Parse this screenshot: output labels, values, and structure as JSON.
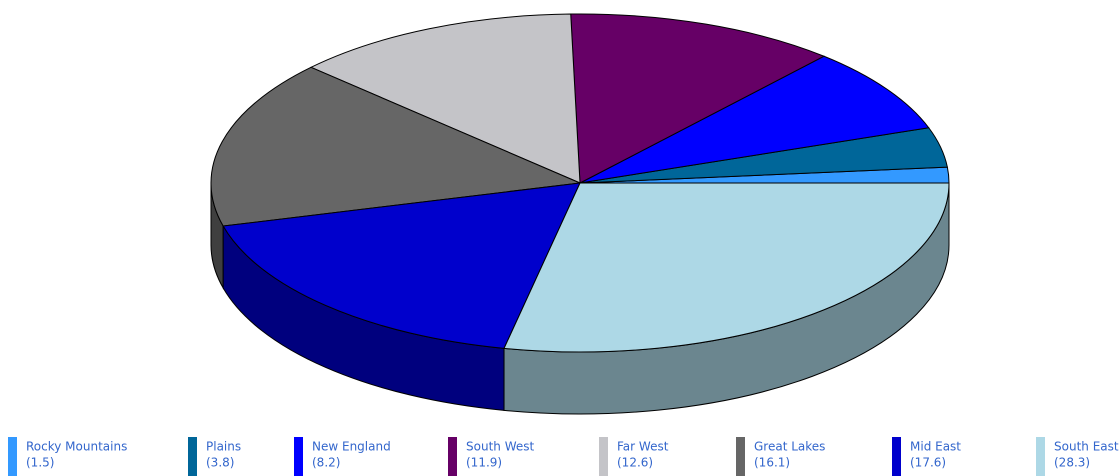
{
  "chart_data": {
    "type": "pie3d",
    "categories": [
      "Rocky Mountains",
      "Plains",
      "New England",
      "South West",
      "Far West",
      "Great Lakes",
      "Mid East",
      "South East"
    ],
    "values": [
      1.5,
      3.8,
      8.2,
      11.9,
      12.6,
      16.1,
      17.6,
      28.3
    ],
    "value_labels": [
      "(1.5)",
      "(3.8)",
      "(8.2)",
      "(11.9)",
      "(12.6)",
      "(16.1)",
      "(17.6)",
      "(28.3)"
    ],
    "colors": [
      "#3399ff",
      "#006699",
      "#0000ff",
      "#660066",
      "#c4c4c8",
      "#666666",
      "#0000cc",
      "#add8e6"
    ]
  }
}
